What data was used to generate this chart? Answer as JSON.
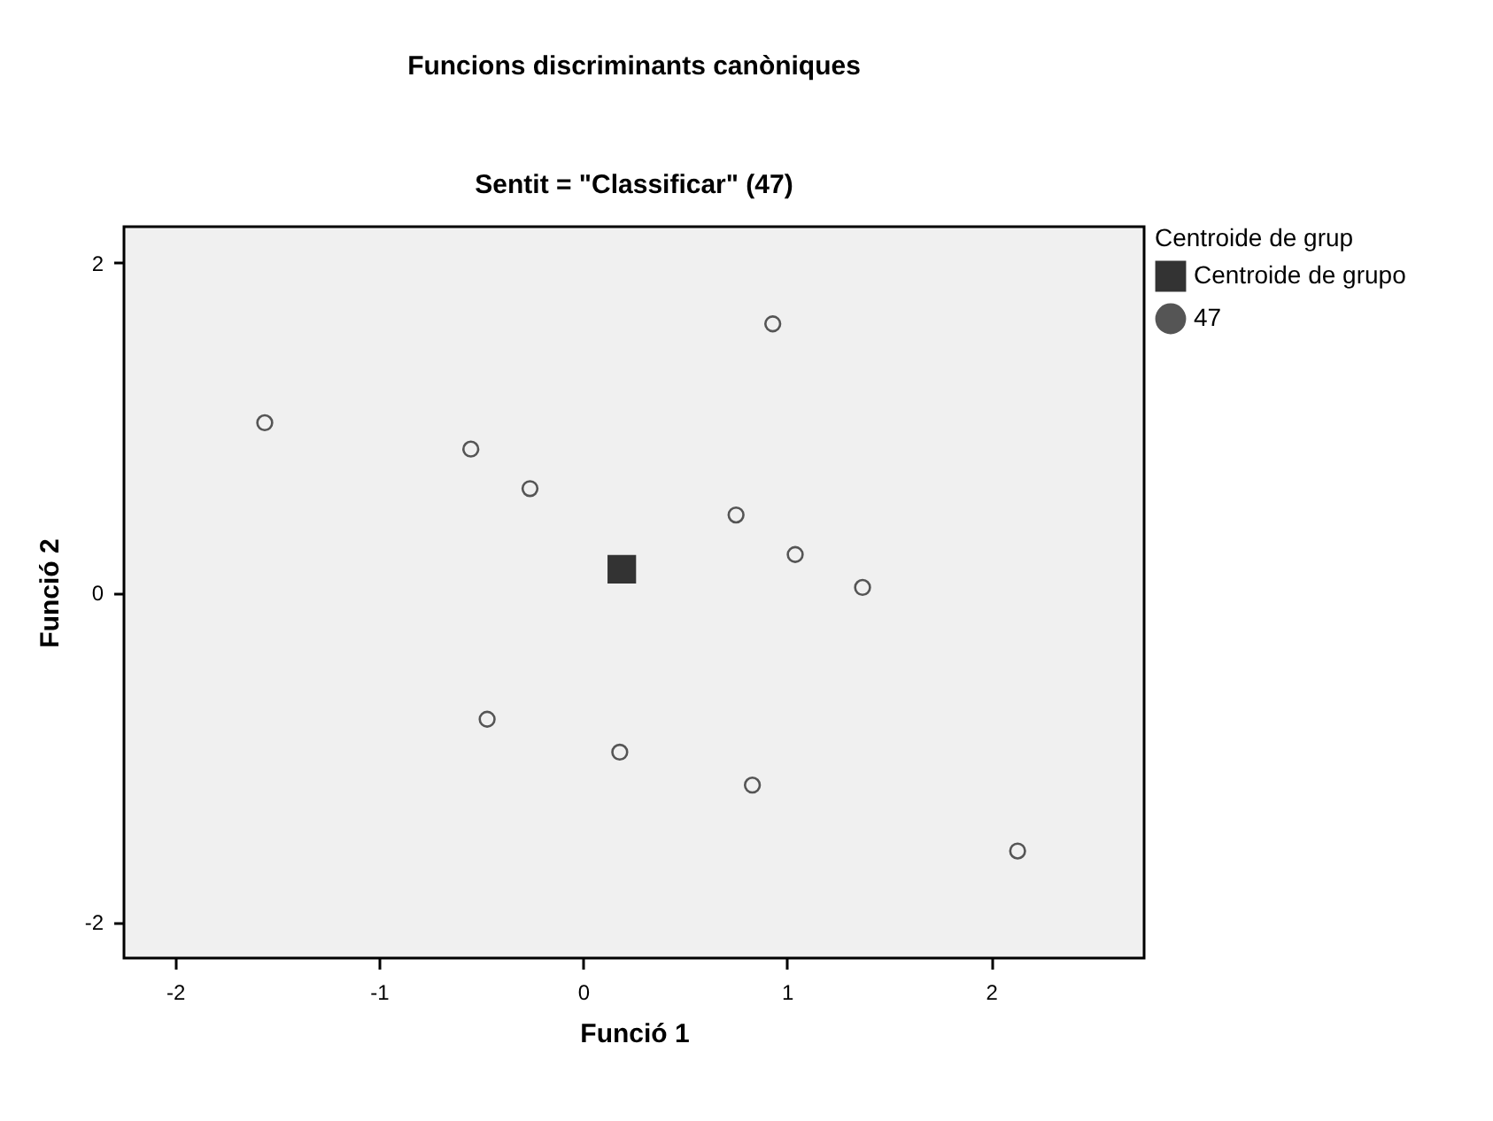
{
  "chart_data": {
    "type": "scatter",
    "title": "Funcions discriminants canòniques",
    "subtitle": "Sentit = \"Classificar\" (47)",
    "xlabel": "Funció 1",
    "ylabel": "Funció 2",
    "legend_title": "Centroide de grup",
    "legend": "right",
    "xlim": [
      -2.25,
      2.75
    ],
    "ylim": [
      -2.22,
      2.22
    ],
    "xticks": [
      -2,
      -1,
      0,
      1,
      2
    ],
    "yticks": [
      -2,
      0,
      2
    ],
    "grid": false,
    "series": [
      {
        "name": "Centroide de grupo",
        "color": "#333333",
        "marker": "square",
        "x": [
          0.19
        ],
        "values": [
          0.14
        ]
      },
      {
        "name": "47",
        "color": "#555555",
        "marker": "circle",
        "x": [
          -1.56,
          -0.55,
          -0.26,
          0.75,
          -0.47,
          0.18,
          0.93,
          1.04,
          1.37,
          0.83,
          2.13
        ],
        "values": [
          1.03,
          0.87,
          0.63,
          0.47,
          -0.77,
          -0.97,
          1.63,
          0.23,
          0.03,
          -1.17,
          -1.57
        ]
      }
    ]
  }
}
